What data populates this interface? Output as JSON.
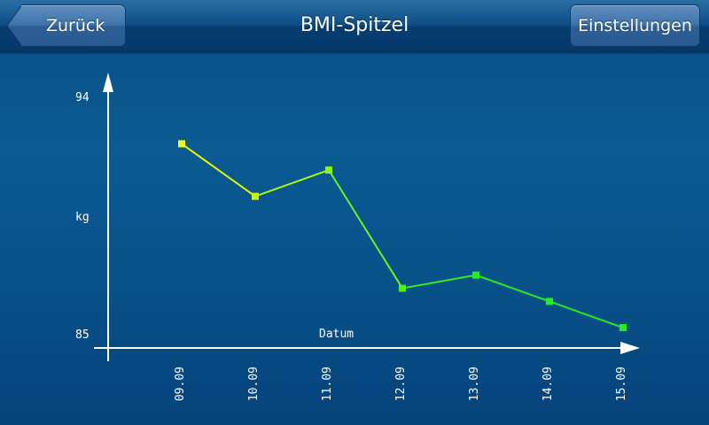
{
  "navbar": {
    "title": "BMI-Spitzel",
    "back_label": "Zurück",
    "settings_label": "Einstellungen"
  },
  "colors": {
    "background": "#0b5a92",
    "axis": "#ffffff",
    "line_high": "#ffff00",
    "line_low": "#22ee22"
  },
  "chart_data": {
    "type": "line",
    "x": [
      "09.09",
      "10.09",
      "11.09",
      "12.09",
      "13.09",
      "14.09",
      "15.09"
    ],
    "values": [
      92.2,
      90.2,
      91.2,
      86.7,
      87.2,
      86.2,
      85.2
    ],
    "xlabel": "Datum",
    "ylabel": "kg",
    "y_max_label": "94",
    "y_min_label": "85",
    "ylim": [
      85,
      94
    ],
    "grid": false
  }
}
